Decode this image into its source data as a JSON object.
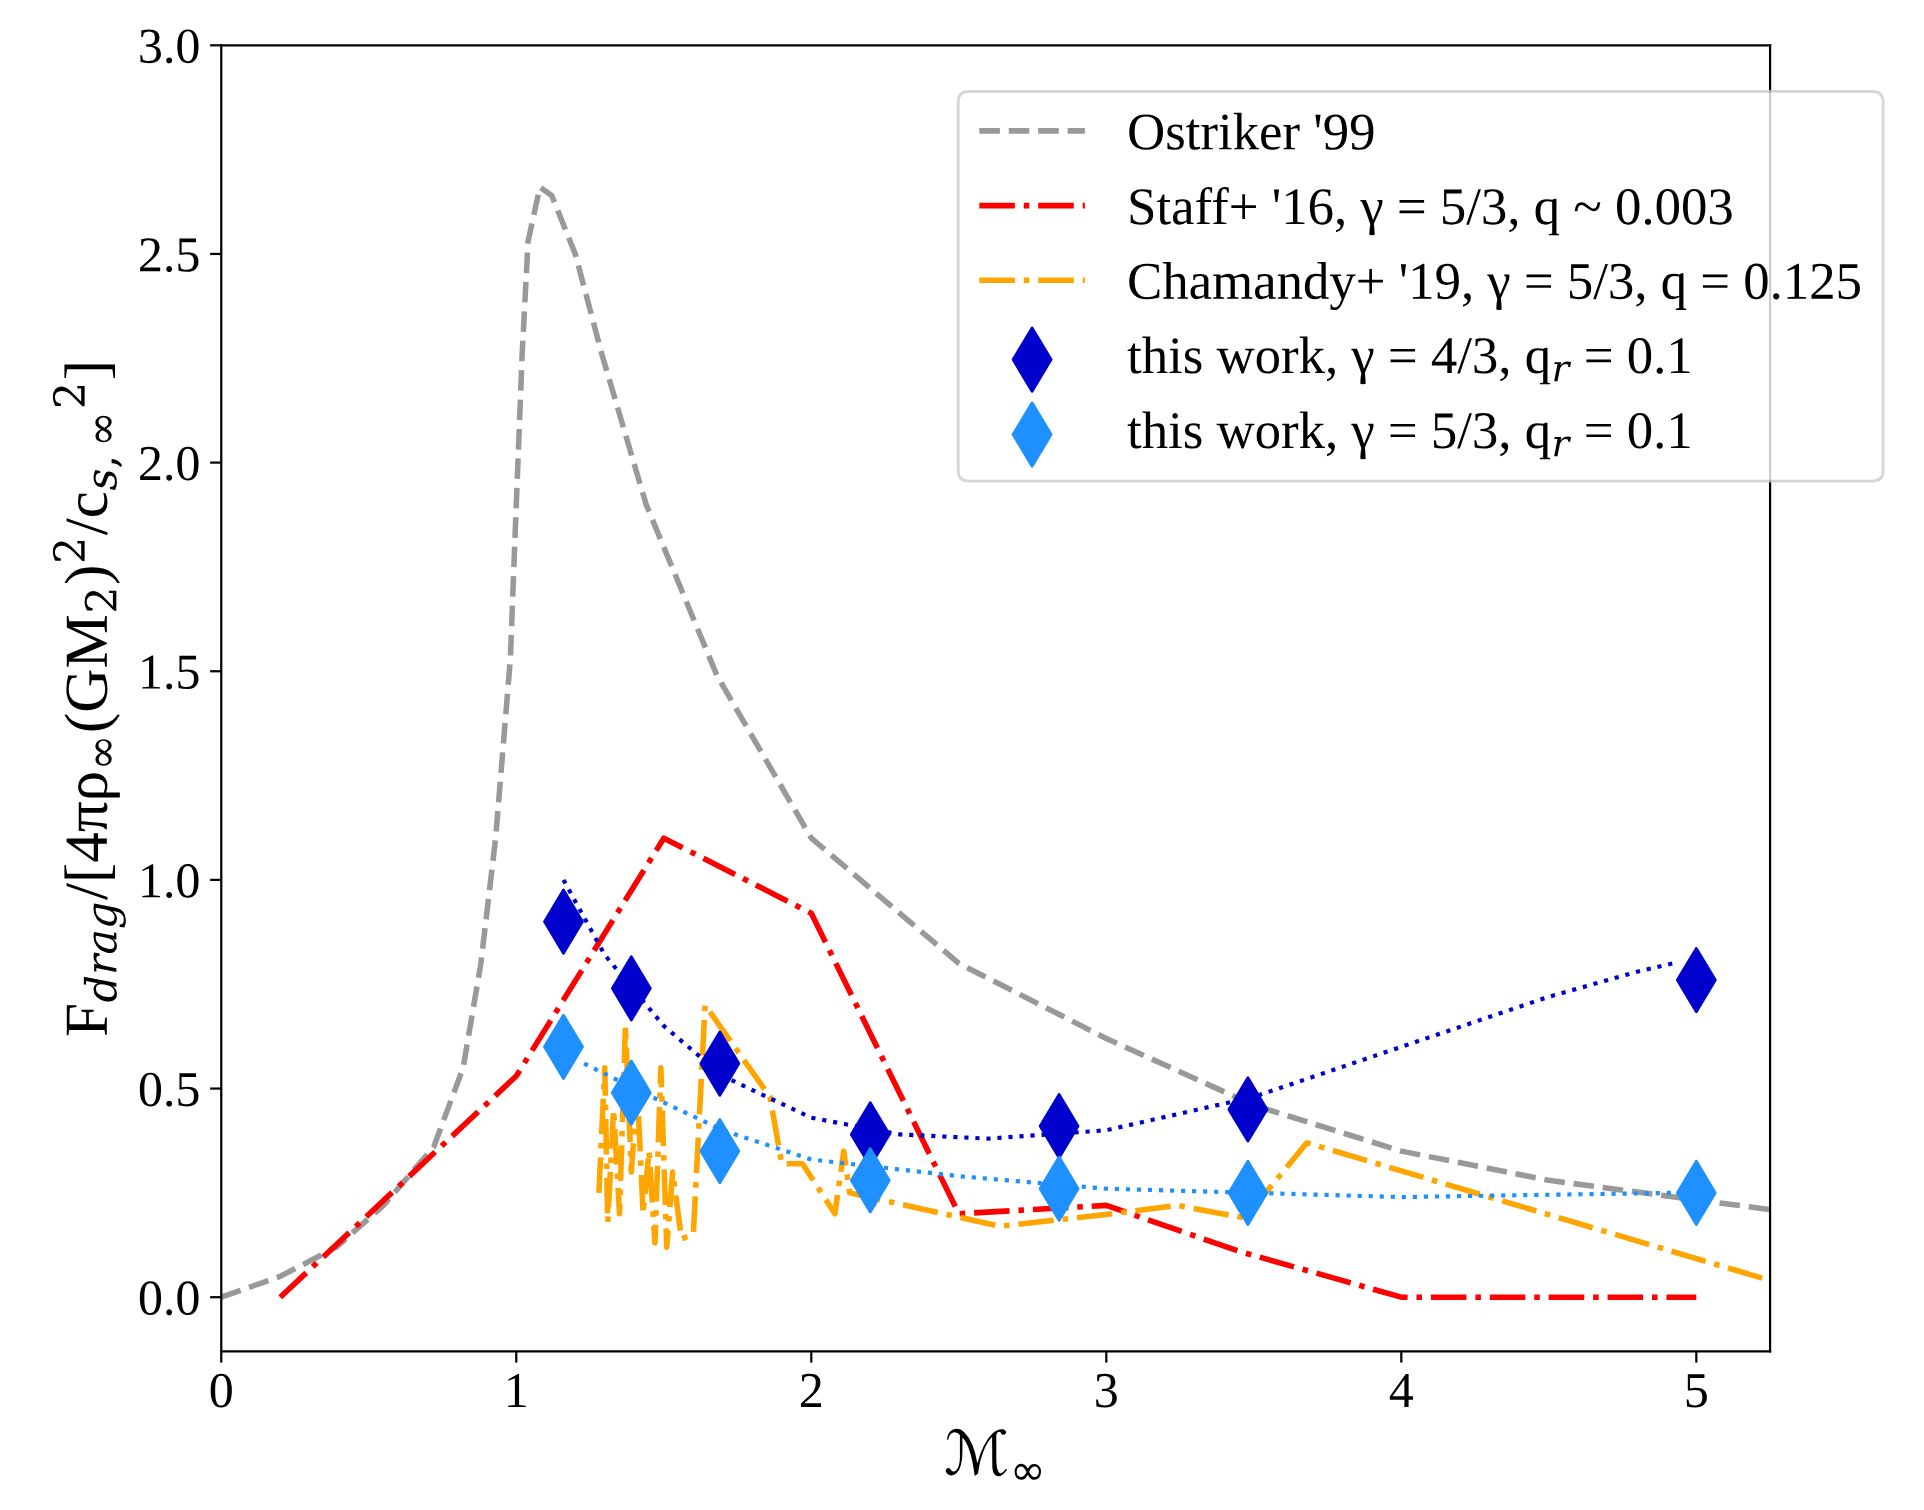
{
  "chart_data": {
    "type": "line",
    "xlabel": "ℳ$_{∞}$",
    "ylabel": "F$_{drag}$/[4πρ$_{∞}$(GM$_{2}$)$^{2}$/c$_{s,∞}$$^{2}$]",
    "xlim": [
      0,
      5.25
    ],
    "ylim": [
      -0.13,
      3.0
    ],
    "xticks": [
      0,
      1,
      2,
      3,
      4,
      5
    ],
    "yticks": [
      {
        "value": 0,
        "label": "0.0"
      },
      {
        "value": 0.5,
        "label": "0.5"
      },
      {
        "value": 1,
        "label": "1.0"
      },
      {
        "value": 1.5,
        "label": "1.5"
      },
      {
        "value": 2,
        "label": "2.0"
      },
      {
        "value": 2.5,
        "label": "2.5"
      },
      {
        "value": 3,
        "label": "3.0"
      }
    ],
    "grid": false,
    "legend": "top right",
    "series": [
      {
        "name": "Ostriker '99",
        "line_style": "dashed",
        "color": "#999999",
        "x": [
          0,
          0.2,
          0.39,
          0.55,
          0.72,
          0.82,
          0.88,
          0.93,
          0.98,
          1.0,
          1.02,
          1.04,
          1.08,
          1.12,
          1.2,
          1.29,
          1.44,
          1.68,
          2.0,
          2.5,
          3.0,
          3.5,
          4.0,
          4.5,
          5.25
        ],
        "values": [
          0,
          0.05,
          0.12,
          0.22,
          0.36,
          0.55,
          0.8,
          1.1,
          1.53,
          1.9,
          2.26,
          2.53,
          2.66,
          2.64,
          2.5,
          2.26,
          1.9,
          1.49,
          1.1,
          0.8,
          0.62,
          0.46,
          0.35,
          0.28,
          0.21
        ]
      },
      {
        "name": "Staff+ '16, γ = 5/3, q ~ 0.003",
        "line_style": "dashdot",
        "color": "#ff0000",
        "x": [
          0.2,
          1.0,
          1.5,
          2.0,
          2.5,
          3.0,
          3.45,
          4.0,
          5.0
        ],
        "values": [
          0,
          0.53,
          1.1,
          0.92,
          0.2,
          0.22,
          0.11,
          0,
          0
        ]
      },
      {
        "name": "Chamandy+ '19, γ = 5/3, q = 0.125",
        "line_style": "dashdot",
        "color": "#ffa500",
        "x": [
          1.28,
          1.3,
          1.31,
          1.33,
          1.35,
          1.37,
          1.39,
          1.41,
          1.43,
          1.45,
          1.47,
          1.49,
          1.51,
          1.53,
          1.56,
          1.6,
          1.64,
          1.86,
          1.9,
          1.97,
          2.08,
          2.11,
          2.13,
          2.64,
          3.02,
          3.24,
          3.47,
          3.68,
          5.25
        ],
        "values": [
          0.25,
          0.55,
          0.18,
          0.45,
          0.2,
          0.65,
          0.3,
          0.5,
          0.2,
          0.35,
          0.13,
          0.55,
          0.12,
          0.3,
          0.14,
          0.15,
          0.7,
          0.48,
          0.32,
          0.32,
          0.2,
          0.35,
          0.25,
          0.17,
          0.2,
          0.22,
          0.19,
          0.37,
          0.04
        ]
      },
      {
        "name": "this work, γ = 4/3, q$_{r}$ = 0.1",
        "type": "scatter",
        "marker": "diamond",
        "color": "#0000cd",
        "x": [
          1.16,
          1.39,
          1.69,
          2.2,
          2.84,
          3.48,
          5.0
        ],
        "values": [
          0.9,
          0.74,
          0.56,
          0.39,
          0.41,
          0.45,
          0.76
        ]
      },
      {
        "name": "this work, γ = 5/3, q$_{r}$ = 0.1",
        "type": "scatter",
        "marker": "diamond",
        "color": "#1e90ff",
        "x": [
          1.16,
          1.39,
          1.69,
          2.2,
          2.84,
          3.48,
          5.0
        ],
        "values": [
          0.6,
          0.49,
          0.35,
          0.28,
          0.26,
          0.25,
          0.25
        ]
      },
      {
        "line_style": "dotted",
        "color": "#0000cd",
        "x": [
          1.16,
          1.3,
          1.5,
          1.7,
          2.0,
          2.3,
          2.6,
          3.0,
          3.5,
          4.0,
          4.5,
          4.8,
          4.92
        ],
        "values": [
          1.0,
          0.82,
          0.65,
          0.53,
          0.43,
          0.39,
          0.38,
          0.4,
          0.48,
          0.6,
          0.72,
          0.78,
          0.8
        ]
      },
      {
        "line_style": "dotted",
        "color": "#1e90ff",
        "x": [
          1.23,
          1.4,
          1.7,
          2.0,
          2.5,
          3.0,
          4.0,
          4.92
        ],
        "values": [
          0.56,
          0.5,
          0.4,
          0.33,
          0.29,
          0.26,
          0.24,
          0.25
        ]
      }
    ]
  }
}
